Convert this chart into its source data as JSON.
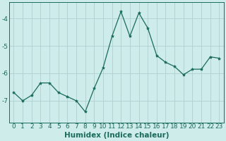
{
  "x": [
    0,
    1,
    2,
    3,
    4,
    5,
    6,
    7,
    8,
    9,
    10,
    11,
    12,
    13,
    14,
    15,
    16,
    17,
    18,
    19,
    20,
    21,
    22,
    23
  ],
  "y": [
    -6.7,
    -7.0,
    -6.8,
    -6.35,
    -6.35,
    -6.7,
    -6.85,
    -7.0,
    -7.4,
    -6.55,
    -5.8,
    -4.65,
    -3.75,
    -4.65,
    -3.8,
    -4.35,
    -5.35,
    -5.6,
    -5.75,
    -6.05,
    -5.85,
    -5.85,
    -5.4,
    -5.45
  ],
  "line_color": "#1a6b5a",
  "marker": "*",
  "marker_size": 3,
  "xlabel": "Humidex (Indice chaleur)",
  "xlim": [
    -0.5,
    23.5
  ],
  "ylim": [
    -7.8,
    -3.4
  ],
  "yticks": [
    -7,
    -6,
    -5,
    -4
  ],
  "xticks": [
    0,
    1,
    2,
    3,
    4,
    5,
    6,
    7,
    8,
    9,
    10,
    11,
    12,
    13,
    14,
    15,
    16,
    17,
    18,
    19,
    20,
    21,
    22,
    23
  ],
  "bg_color": "#ceecea",
  "grid_color": "#aed0ce",
  "tick_color": "#1a6b5a",
  "label_color": "#1a6b5a",
  "xlabel_fontsize": 7.5,
  "tick_fontsize": 6.5,
  "linewidth": 0.9
}
